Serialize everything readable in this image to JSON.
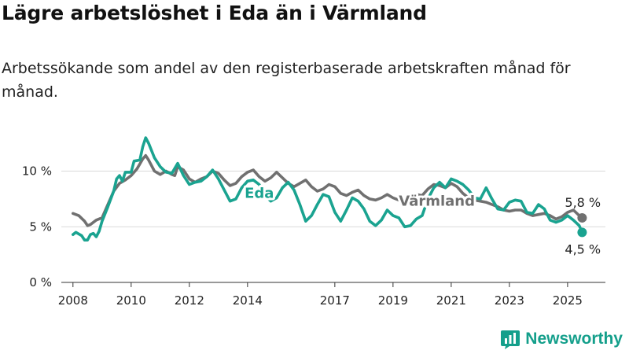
{
  "title": "Lägre arbetslöshet i Eda än i Värmland",
  "subtitle": "Arbetssökande som andel av den registerbaserade arbetskraften månad för månad.",
  "brand": {
    "name": "Newsworthy",
    "icon": "bar-chart-logo-icon"
  },
  "colors": {
    "eda": "#1aa390",
    "varmland": "#707070",
    "grid": "#d9d9d9",
    "axis": "#333333"
  },
  "chart_data": {
    "type": "line",
    "title": "Lägre arbetslöshet i Eda än i Värmland",
    "xlabel": "",
    "ylabel": "",
    "xlim": [
      2007.6,
      2026.3
    ],
    "ylim": [
      0,
      13.5
    ],
    "x_ticks": [
      {
        "value": 2008,
        "label": "2008"
      },
      {
        "value": 2010,
        "label": "2010"
      },
      {
        "value": 2012,
        "label": "2012"
      },
      {
        "value": 2014,
        "label": "2014"
      },
      {
        "value": 2017,
        "label": "2017"
      },
      {
        "value": 2019,
        "label": "2019"
      },
      {
        "value": 2021,
        "label": "2021"
      },
      {
        "value": 2023,
        "label": "2023"
      },
      {
        "value": 2025,
        "label": "2025"
      }
    ],
    "y_ticks": [
      {
        "value": 0,
        "label": "0 %"
      },
      {
        "value": 5,
        "label": "5 %"
      },
      {
        "value": 10,
        "label": "10 %"
      }
    ],
    "grid": true,
    "legend": "inline labels",
    "series": [
      {
        "name": "Värmland",
        "color": "#707070",
        "points": [
          [
            2008.0,
            6.2
          ],
          [
            2008.2,
            6.0
          ],
          [
            2008.4,
            5.5
          ],
          [
            2008.5,
            5.1
          ],
          [
            2008.6,
            5.2
          ],
          [
            2008.8,
            5.6
          ],
          [
            2009.0,
            5.8
          ],
          [
            2009.2,
            7.0
          ],
          [
            2009.4,
            8.2
          ],
          [
            2009.6,
            8.9
          ],
          [
            2009.8,
            9.2
          ],
          [
            2010.0,
            9.6
          ],
          [
            2010.2,
            10.2
          ],
          [
            2010.4,
            11.1
          ],
          [
            2010.5,
            11.4
          ],
          [
            2010.6,
            11.0
          ],
          [
            2010.8,
            10.0
          ],
          [
            2011.0,
            9.7
          ],
          [
            2011.2,
            10.0
          ],
          [
            2011.4,
            9.7
          ],
          [
            2011.5,
            9.6
          ],
          [
            2011.6,
            10.4
          ],
          [
            2011.8,
            10.1
          ],
          [
            2012.0,
            9.3
          ],
          [
            2012.2,
            9.0
          ],
          [
            2012.4,
            9.3
          ],
          [
            2012.6,
            9.5
          ],
          [
            2012.8,
            10.0
          ],
          [
            2013.0,
            9.8
          ],
          [
            2013.2,
            9.2
          ],
          [
            2013.4,
            8.7
          ],
          [
            2013.6,
            8.9
          ],
          [
            2013.8,
            9.5
          ],
          [
            2014.0,
            9.9
          ],
          [
            2014.2,
            10.1
          ],
          [
            2014.4,
            9.5
          ],
          [
            2014.6,
            9.1
          ],
          [
            2014.8,
            9.4
          ],
          [
            2015.0,
            9.9
          ],
          [
            2015.2,
            9.4
          ],
          [
            2015.4,
            8.9
          ],
          [
            2015.6,
            8.6
          ],
          [
            2015.8,
            8.9
          ],
          [
            2016.0,
            9.2
          ],
          [
            2016.2,
            8.6
          ],
          [
            2016.4,
            8.2
          ],
          [
            2016.6,
            8.4
          ],
          [
            2016.8,
            8.8
          ],
          [
            2017.0,
            8.6
          ],
          [
            2017.2,
            8.0
          ],
          [
            2017.4,
            7.8
          ],
          [
            2017.6,
            8.1
          ],
          [
            2017.8,
            8.3
          ],
          [
            2018.0,
            7.8
          ],
          [
            2018.2,
            7.5
          ],
          [
            2018.4,
            7.4
          ],
          [
            2018.6,
            7.6
          ],
          [
            2018.8,
            7.9
          ],
          [
            2019.0,
            7.6
          ],
          [
            2019.2,
            7.4
          ],
          [
            2019.4,
            7.4
          ],
          [
            2019.6,
            7.6
          ],
          [
            2019.8,
            7.9
          ],
          [
            2020.0,
            7.8
          ],
          [
            2020.2,
            8.4
          ],
          [
            2020.4,
            8.8
          ],
          [
            2020.6,
            8.7
          ],
          [
            2020.8,
            8.5
          ],
          [
            2021.0,
            8.9
          ],
          [
            2021.2,
            8.6
          ],
          [
            2021.4,
            8.0
          ],
          [
            2021.6,
            7.6
          ],
          [
            2021.8,
            7.4
          ],
          [
            2022.0,
            7.3
          ],
          [
            2022.2,
            7.2
          ],
          [
            2022.4,
            7.0
          ],
          [
            2022.6,
            6.8
          ],
          [
            2022.8,
            6.5
          ],
          [
            2023.0,
            6.4
          ],
          [
            2023.2,
            6.5
          ],
          [
            2023.4,
            6.5
          ],
          [
            2023.6,
            6.2
          ],
          [
            2023.8,
            6.0
          ],
          [
            2024.0,
            6.1
          ],
          [
            2024.2,
            6.2
          ],
          [
            2024.4,
            6.0
          ],
          [
            2024.6,
            5.7
          ],
          [
            2024.8,
            5.9
          ],
          [
            2025.0,
            6.3
          ],
          [
            2025.2,
            6.5
          ],
          [
            2025.4,
            6.0
          ],
          [
            2025.5,
            5.8
          ]
        ],
        "label": {
          "text": "Värmland",
          "x": 2019.2,
          "y": 6.9
        },
        "end_label": "5,8 %",
        "end_value": 5.8
      },
      {
        "name": "Eda",
        "color": "#1aa390",
        "points": [
          [
            2008.0,
            4.3
          ],
          [
            2008.1,
            4.5
          ],
          [
            2008.3,
            4.2
          ],
          [
            2008.4,
            3.8
          ],
          [
            2008.5,
            3.8
          ],
          [
            2008.6,
            4.3
          ],
          [
            2008.7,
            4.4
          ],
          [
            2008.8,
            4.1
          ],
          [
            2008.9,
            4.6
          ],
          [
            2009.0,
            5.5
          ],
          [
            2009.2,
            6.8
          ],
          [
            2009.4,
            8.2
          ],
          [
            2009.5,
            9.3
          ],
          [
            2009.6,
            9.6
          ],
          [
            2009.7,
            9.1
          ],
          [
            2009.8,
            9.9
          ],
          [
            2009.9,
            9.9
          ],
          [
            2010.0,
            9.9
          ],
          [
            2010.1,
            10.9
          ],
          [
            2010.3,
            11.0
          ],
          [
            2010.4,
            12.2
          ],
          [
            2010.5,
            13.0
          ],
          [
            2010.6,
            12.5
          ],
          [
            2010.8,
            11.2
          ],
          [
            2011.0,
            10.4
          ],
          [
            2011.2,
            9.9
          ],
          [
            2011.4,
            9.8
          ],
          [
            2011.6,
            10.7
          ],
          [
            2011.8,
            9.6
          ],
          [
            2012.0,
            8.8
          ],
          [
            2012.2,
            9.0
          ],
          [
            2012.4,
            9.1
          ],
          [
            2012.6,
            9.5
          ],
          [
            2012.8,
            10.1
          ],
          [
            2013.0,
            9.3
          ],
          [
            2013.2,
            8.3
          ],
          [
            2013.4,
            7.3
          ],
          [
            2013.6,
            7.5
          ],
          [
            2013.8,
            8.5
          ],
          [
            2014.0,
            9.1
          ],
          [
            2014.2,
            9.2
          ],
          [
            2014.4,
            8.8
          ],
          [
            2014.6,
            7.8
          ],
          [
            2014.8,
            7.3
          ],
          [
            2015.0,
            7.6
          ],
          [
            2015.2,
            8.5
          ],
          [
            2015.4,
            9.0
          ],
          [
            2015.6,
            8.3
          ],
          [
            2015.8,
            7.0
          ],
          [
            2016.0,
            5.5
          ],
          [
            2016.2,
            6.0
          ],
          [
            2016.4,
            7.0
          ],
          [
            2016.6,
            7.9
          ],
          [
            2016.8,
            7.7
          ],
          [
            2017.0,
            6.3
          ],
          [
            2017.2,
            5.5
          ],
          [
            2017.4,
            6.5
          ],
          [
            2017.6,
            7.6
          ],
          [
            2017.8,
            7.3
          ],
          [
            2018.0,
            6.6
          ],
          [
            2018.2,
            5.5
          ],
          [
            2018.4,
            5.1
          ],
          [
            2018.6,
            5.6
          ],
          [
            2018.8,
            6.5
          ],
          [
            2019.0,
            6.0
          ],
          [
            2019.2,
            5.8
          ],
          [
            2019.4,
            5.0
          ],
          [
            2019.6,
            5.1
          ],
          [
            2019.8,
            5.7
          ],
          [
            2020.0,
            6.0
          ],
          [
            2020.2,
            7.5
          ],
          [
            2020.4,
            8.5
          ],
          [
            2020.6,
            9.0
          ],
          [
            2020.8,
            8.5
          ],
          [
            2021.0,
            9.3
          ],
          [
            2021.2,
            9.1
          ],
          [
            2021.4,
            8.8
          ],
          [
            2021.6,
            8.3
          ],
          [
            2021.8,
            7.6
          ],
          [
            2022.0,
            7.5
          ],
          [
            2022.2,
            8.5
          ],
          [
            2022.4,
            7.5
          ],
          [
            2022.6,
            6.6
          ],
          [
            2022.8,
            6.5
          ],
          [
            2023.0,
            7.2
          ],
          [
            2023.2,
            7.4
          ],
          [
            2023.4,
            7.3
          ],
          [
            2023.6,
            6.3
          ],
          [
            2023.8,
            6.2
          ],
          [
            2024.0,
            7.0
          ],
          [
            2024.2,
            6.6
          ],
          [
            2024.4,
            5.6
          ],
          [
            2024.6,
            5.4
          ],
          [
            2024.8,
            5.6
          ],
          [
            2025.0,
            6.0
          ],
          [
            2025.2,
            5.6
          ],
          [
            2025.4,
            5.1
          ],
          [
            2025.5,
            4.5
          ]
        ],
        "label": {
          "text": "Eda",
          "x": 2013.9,
          "y": 7.6
        },
        "end_label": "4,5 %",
        "end_value": 4.5
      }
    ]
  }
}
